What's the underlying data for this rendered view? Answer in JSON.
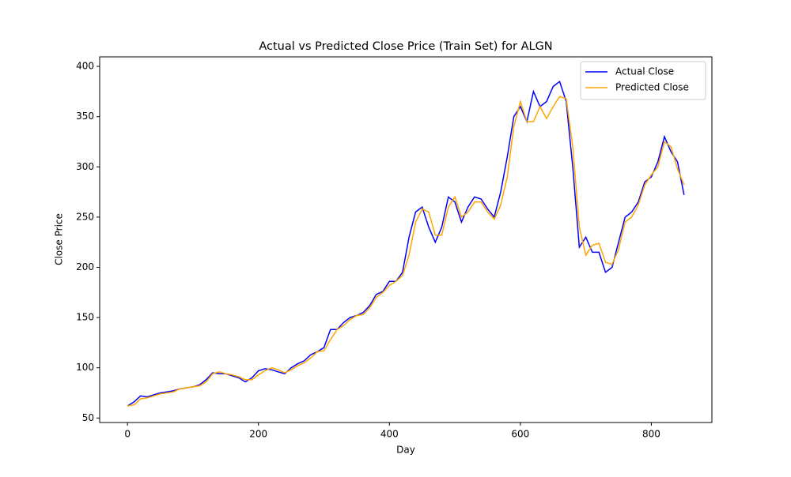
{
  "chart_data": {
    "type": "line",
    "title": "Actual vs Predicted Close Price (Train Set) for ALGN",
    "xlabel": "Day",
    "ylabel": "Close Price",
    "x": [
      0,
      10,
      20,
      30,
      40,
      50,
      60,
      70,
      80,
      90,
      100,
      110,
      120,
      130,
      140,
      150,
      160,
      170,
      180,
      190,
      200,
      210,
      220,
      230,
      240,
      250,
      260,
      270,
      280,
      290,
      300,
      310,
      320,
      330,
      340,
      350,
      360,
      370,
      380,
      390,
      400,
      410,
      420,
      430,
      440,
      450,
      460,
      470,
      480,
      490,
      500,
      510,
      520,
      530,
      540,
      550,
      560,
      570,
      580,
      590,
      600,
      610,
      620,
      630,
      640,
      650,
      660,
      670,
      680,
      690,
      700,
      710,
      720,
      730,
      740,
      750,
      760,
      770,
      780,
      790,
      800,
      810,
      820,
      830,
      840,
      850
    ],
    "series": [
      {
        "name": "Actual Close",
        "color": "#0000ff",
        "values": [
          62,
          66,
          72,
          71,
          73,
          75,
          76,
          77,
          79,
          80,
          81,
          83,
          88,
          95,
          94,
          94,
          92,
          90,
          86,
          90,
          97,
          99,
          98,
          96,
          94,
          100,
          104,
          107,
          113,
          116,
          120,
          138,
          138,
          145,
          150,
          152,
          155,
          162,
          173,
          176,
          186,
          186,
          195,
          230,
          255,
          260,
          240,
          225,
          240,
          270,
          265,
          245,
          260,
          270,
          268,
          258,
          250,
          275,
          310,
          350,
          360,
          345,
          375,
          360,
          365,
          380,
          385,
          365,
          300,
          220,
          230,
          215,
          215,
          195,
          200,
          225,
          250,
          255,
          265,
          285,
          290,
          305,
          330,
          315,
          305,
          272
        ]
      },
      {
        "name": "Predicted Close",
        "color": "#ffa500",
        "values": [
          62,
          63,
          69,
          70,
          72,
          74,
          75,
          76,
          79,
          80,
          81,
          82,
          86,
          94,
          96,
          94,
          93,
          91,
          88,
          88,
          93,
          97,
          100,
          98,
          95,
          98,
          102,
          105,
          110,
          116,
          117,
          128,
          138,
          142,
          148,
          152,
          153,
          160,
          170,
          175,
          182,
          186,
          192,
          212,
          245,
          258,
          255,
          232,
          232,
          260,
          270,
          250,
          255,
          265,
          265,
          255,
          248,
          262,
          290,
          340,
          365,
          345,
          345,
          360,
          348,
          360,
          370,
          368,
          320,
          240,
          212,
          222,
          224,
          205,
          203,
          218,
          245,
          250,
          262,
          282,
          292,
          300,
          325,
          320,
          298,
          282
        ]
      }
    ],
    "xlim": [
      -42.5,
      892.5
    ],
    "ylim": [
      45.5,
      409.5
    ],
    "xticks": [
      0,
      200,
      400,
      600,
      800
    ],
    "yticks": [
      50,
      100,
      150,
      200,
      250,
      300,
      350,
      400
    ],
    "grid": false,
    "legend": "upper right"
  }
}
